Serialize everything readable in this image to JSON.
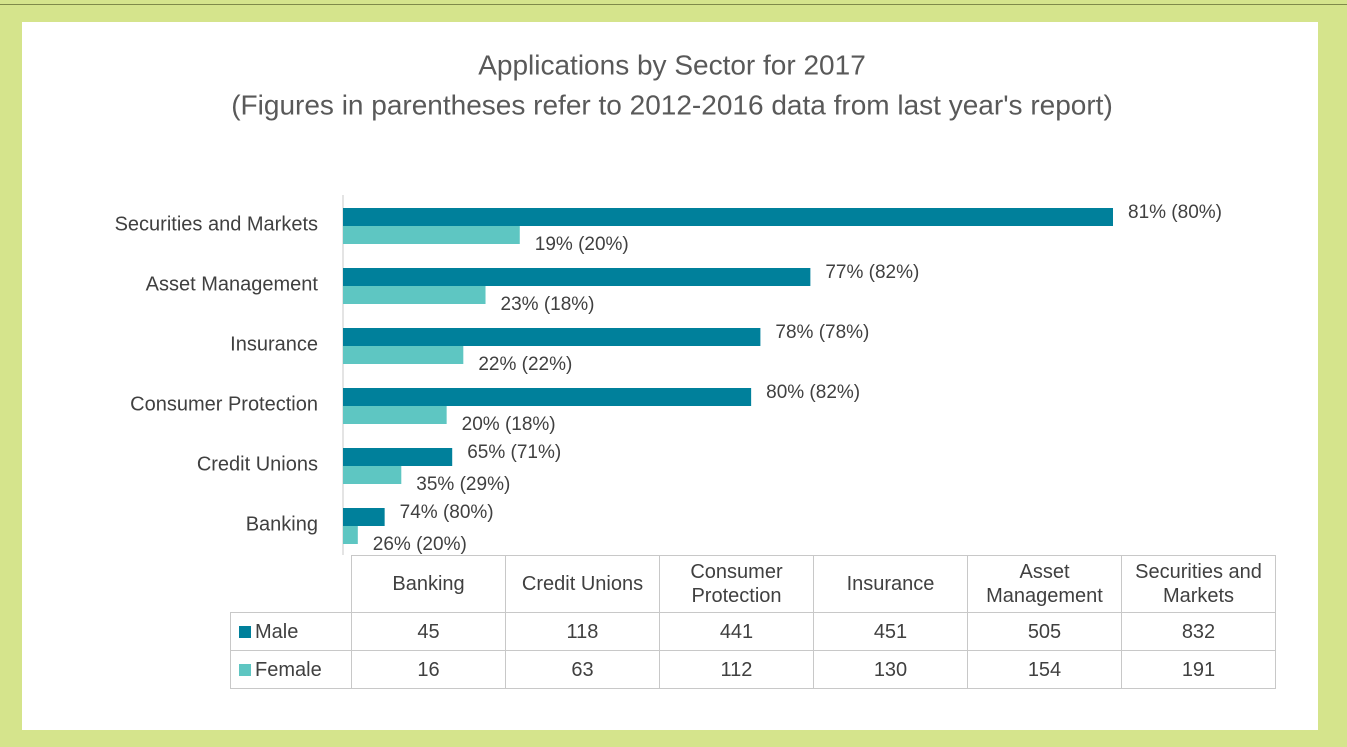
{
  "chart_data": {
    "type": "bar",
    "orientation": "horizontal",
    "title": "Applications by Sector for 2017",
    "subtitle": "(Figures in parentheses refer to 2012-2016 data from last year's report)",
    "categories": [
      "Banking",
      "Credit Unions",
      "Consumer Protection",
      "Insurance",
      "Asset Management",
      "Securities and Markets"
    ],
    "series": [
      {
        "name": "Male",
        "color": "#00809b",
        "values": [
          45,
          118,
          441,
          451,
          505,
          832
        ],
        "value_labels": [
          "74% (80%)",
          "65% (71%)",
          "80% (82%)",
          "78% (78%)",
          "77% (82%)",
          "81% (80%)"
        ]
      },
      {
        "name": "Female",
        "color": "#5ec6c2",
        "values": [
          16,
          63,
          112,
          130,
          154,
          191
        ],
        "value_labels": [
          "26% (20%)",
          "35% (29%)",
          "20% (18%)",
          "22% (22%)",
          "23% (18%)",
          "19% (20%)"
        ]
      }
    ]
  }
}
